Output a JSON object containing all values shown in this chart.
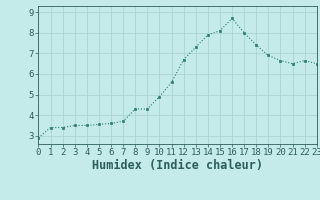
{
  "x": [
    0,
    1,
    2,
    3,
    4,
    5,
    6,
    7,
    8,
    9,
    10,
    11,
    12,
    13,
    14,
    15,
    16,
    17,
    18,
    19,
    20,
    21,
    22,
    23
  ],
  "y": [
    2.9,
    3.4,
    3.4,
    3.5,
    3.5,
    3.55,
    3.6,
    3.7,
    4.3,
    4.3,
    4.9,
    5.6,
    6.7,
    7.3,
    7.9,
    8.1,
    8.7,
    8.0,
    7.4,
    6.9,
    6.65,
    6.5,
    6.65,
    6.5
  ],
  "xlabel": "Humidex (Indice chaleur)",
  "line_color": "#2e7d6e",
  "marker_color": "#2e7d6e",
  "bg_color": "#c5eaea",
  "grid_color": "#a8d0d0",
  "xlim": [
    0,
    23
  ],
  "ylim": [
    2.6,
    9.3
  ],
  "yticks": [
    3,
    4,
    5,
    6,
    7,
    8,
    9
  ],
  "xticks": [
    0,
    1,
    2,
    3,
    4,
    5,
    6,
    7,
    8,
    9,
    10,
    11,
    12,
    13,
    14,
    15,
    16,
    17,
    18,
    19,
    20,
    21,
    22,
    23
  ],
  "tick_color": "#2e5d5d",
  "font_size": 6.5,
  "xlabel_fontsize": 8.5
}
